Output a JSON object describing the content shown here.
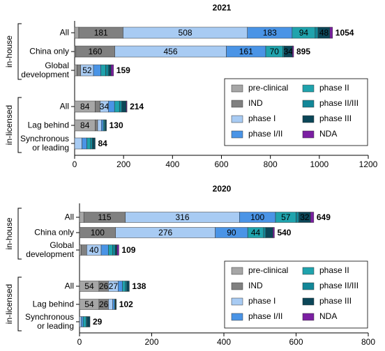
{
  "chart_data": [
    {
      "type": "stacked-bar-horizontal",
      "title": "2021",
      "categories": [
        "All",
        "China only",
        "Global development",
        "All",
        "Lag behind",
        "Synchronous or leading"
      ],
      "groups": [
        "in-house",
        "in-licensed"
      ],
      "series": [
        {
          "name": "pre-clinical",
          "color": "#a6a6a6",
          "values": [
            17,
            4,
            10,
            84,
            84,
            0
          ]
        },
        {
          "name": "IND",
          "color": "#808080",
          "values": [
            181,
            160,
            15,
            20,
            10,
            0
          ]
        },
        {
          "name": "phase I",
          "color": "#a8cbf3",
          "values": [
            508,
            456,
            52,
            34,
            15,
            30
          ]
        },
        {
          "name": "phase I/II",
          "color": "#4a94e6",
          "values": [
            183,
            161,
            30,
            25,
            8,
            20
          ]
        },
        {
          "name": "phase II",
          "color": "#1fa3ad",
          "values": [
            94,
            70,
            20,
            20,
            5,
            15
          ]
        },
        {
          "name": "phase II/III",
          "color": "#128798",
          "values": [
            12,
            5,
            12,
            10,
            3,
            8
          ]
        },
        {
          "name": "phase III",
          "color": "#0b4658",
          "values": [
            48,
            34,
            10,
            18,
            5,
            11
          ]
        },
        {
          "name": "NDA",
          "color": "#7b1fa2",
          "values": [
            11,
            5,
            10,
            3,
            0,
            0
          ]
        }
      ],
      "totals": [
        1054,
        895,
        159,
        214,
        130,
        84
      ],
      "xlim": [
        0,
        1200
      ],
      "xticks": [
        0,
        200,
        400,
        600,
        800,
        1000,
        1200
      ],
      "legend": "lower right"
    },
    {
      "type": "stacked-bar-horizontal",
      "title": "2020",
      "categories": [
        "All",
        "China only",
        "Global development",
        "All",
        "Lag behind",
        "Synchronous or leading"
      ],
      "groups": [
        "in-house",
        "in-licensed"
      ],
      "series": [
        {
          "name": "pre-clinical",
          "color": "#a6a6a6",
          "values": [
            12,
            0,
            5,
            54,
            54,
            0
          ]
        },
        {
          "name": "IND",
          "color": "#808080",
          "values": [
            115,
            100,
            15,
            26,
            26,
            0
          ]
        },
        {
          "name": "phase I",
          "color": "#a8cbf3",
          "values": [
            316,
            276,
            40,
            27,
            12,
            5
          ]
        },
        {
          "name": "phase I/II",
          "color": "#4a94e6",
          "values": [
            100,
            90,
            20,
            12,
            5,
            5
          ]
        },
        {
          "name": "phase II",
          "color": "#1fa3ad",
          "values": [
            57,
            44,
            12,
            8,
            2,
            8
          ]
        },
        {
          "name": "phase II/III",
          "color": "#128798",
          "values": [
            8,
            6,
            7,
            4,
            1,
            3
          ]
        },
        {
          "name": "phase III",
          "color": "#0b4658",
          "values": [
            32,
            20,
            5,
            7,
            2,
            8
          ]
        },
        {
          "name": "NDA",
          "color": "#7b1fa2",
          "values": [
            9,
            4,
            5,
            0,
            0,
            0
          ]
        }
      ],
      "totals": [
        649,
        540,
        109,
        138,
        102,
        29
      ],
      "xlim": [
        0,
        800
      ],
      "xticks": [
        0,
        200,
        400,
        600,
        800
      ],
      "legend": "lower right"
    }
  ]
}
